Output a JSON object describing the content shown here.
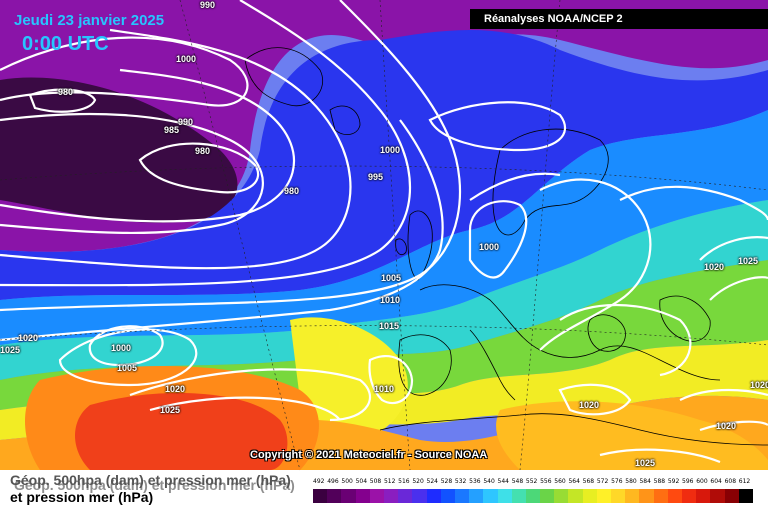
{
  "header": {
    "date": "Jeudi 23 janvier 2025",
    "time": "0:00 UTC",
    "source": "Réanalyses NOAA/NCEP 2"
  },
  "footer": {
    "copyright": "Copyright © 2021 Meteociel.fr - Source NOAA",
    "legend_line1": "Géop. 500hpa (dam) et pression mer (hPa)",
    "legend_line2": "et pression mer (hPa)"
  },
  "scale": {
    "labels": [
      "492",
      "496",
      "500",
      "504",
      "508",
      "512",
      "516",
      "520",
      "524",
      "528",
      "532",
      "536",
      "540",
      "544",
      "548",
      "552",
      "556",
      "560",
      "564",
      "568",
      "572",
      "576",
      "580",
      "584",
      "588",
      "592",
      "596",
      "600",
      "604",
      "608",
      "612"
    ],
    "colors": [
      "#3b0040",
      "#52005a",
      "#6a0074",
      "#84008e",
      "#9b12a8",
      "#8a1ec0",
      "#6a28d8",
      "#4a30ee",
      "#1e2cff",
      "#1252ff",
      "#1a78ff",
      "#24a0ff",
      "#2ec6ff",
      "#3ee0e8",
      "#44e0b0",
      "#4cd878",
      "#6ad448",
      "#98dc34",
      "#c4e626",
      "#e8ee22",
      "#fff028",
      "#ffd828",
      "#ffb820",
      "#ff9418",
      "#ff6e12",
      "#ff4a10",
      "#f02c10",
      "#d8180c",
      "#b00c08",
      "#880004",
      "#000000"
    ]
  },
  "isobars": [
    "990",
    "1000",
    "980",
    "985",
    "990",
    "980",
    "980",
    "1000",
    "995",
    "1000",
    "1005",
    "1010",
    "1015",
    "1020",
    "1000",
    "1005",
    "1020",
    "1025",
    "1010",
    "1020",
    "1020",
    "1025",
    "1025",
    "1020",
    "1025",
    "1020"
  ]
}
